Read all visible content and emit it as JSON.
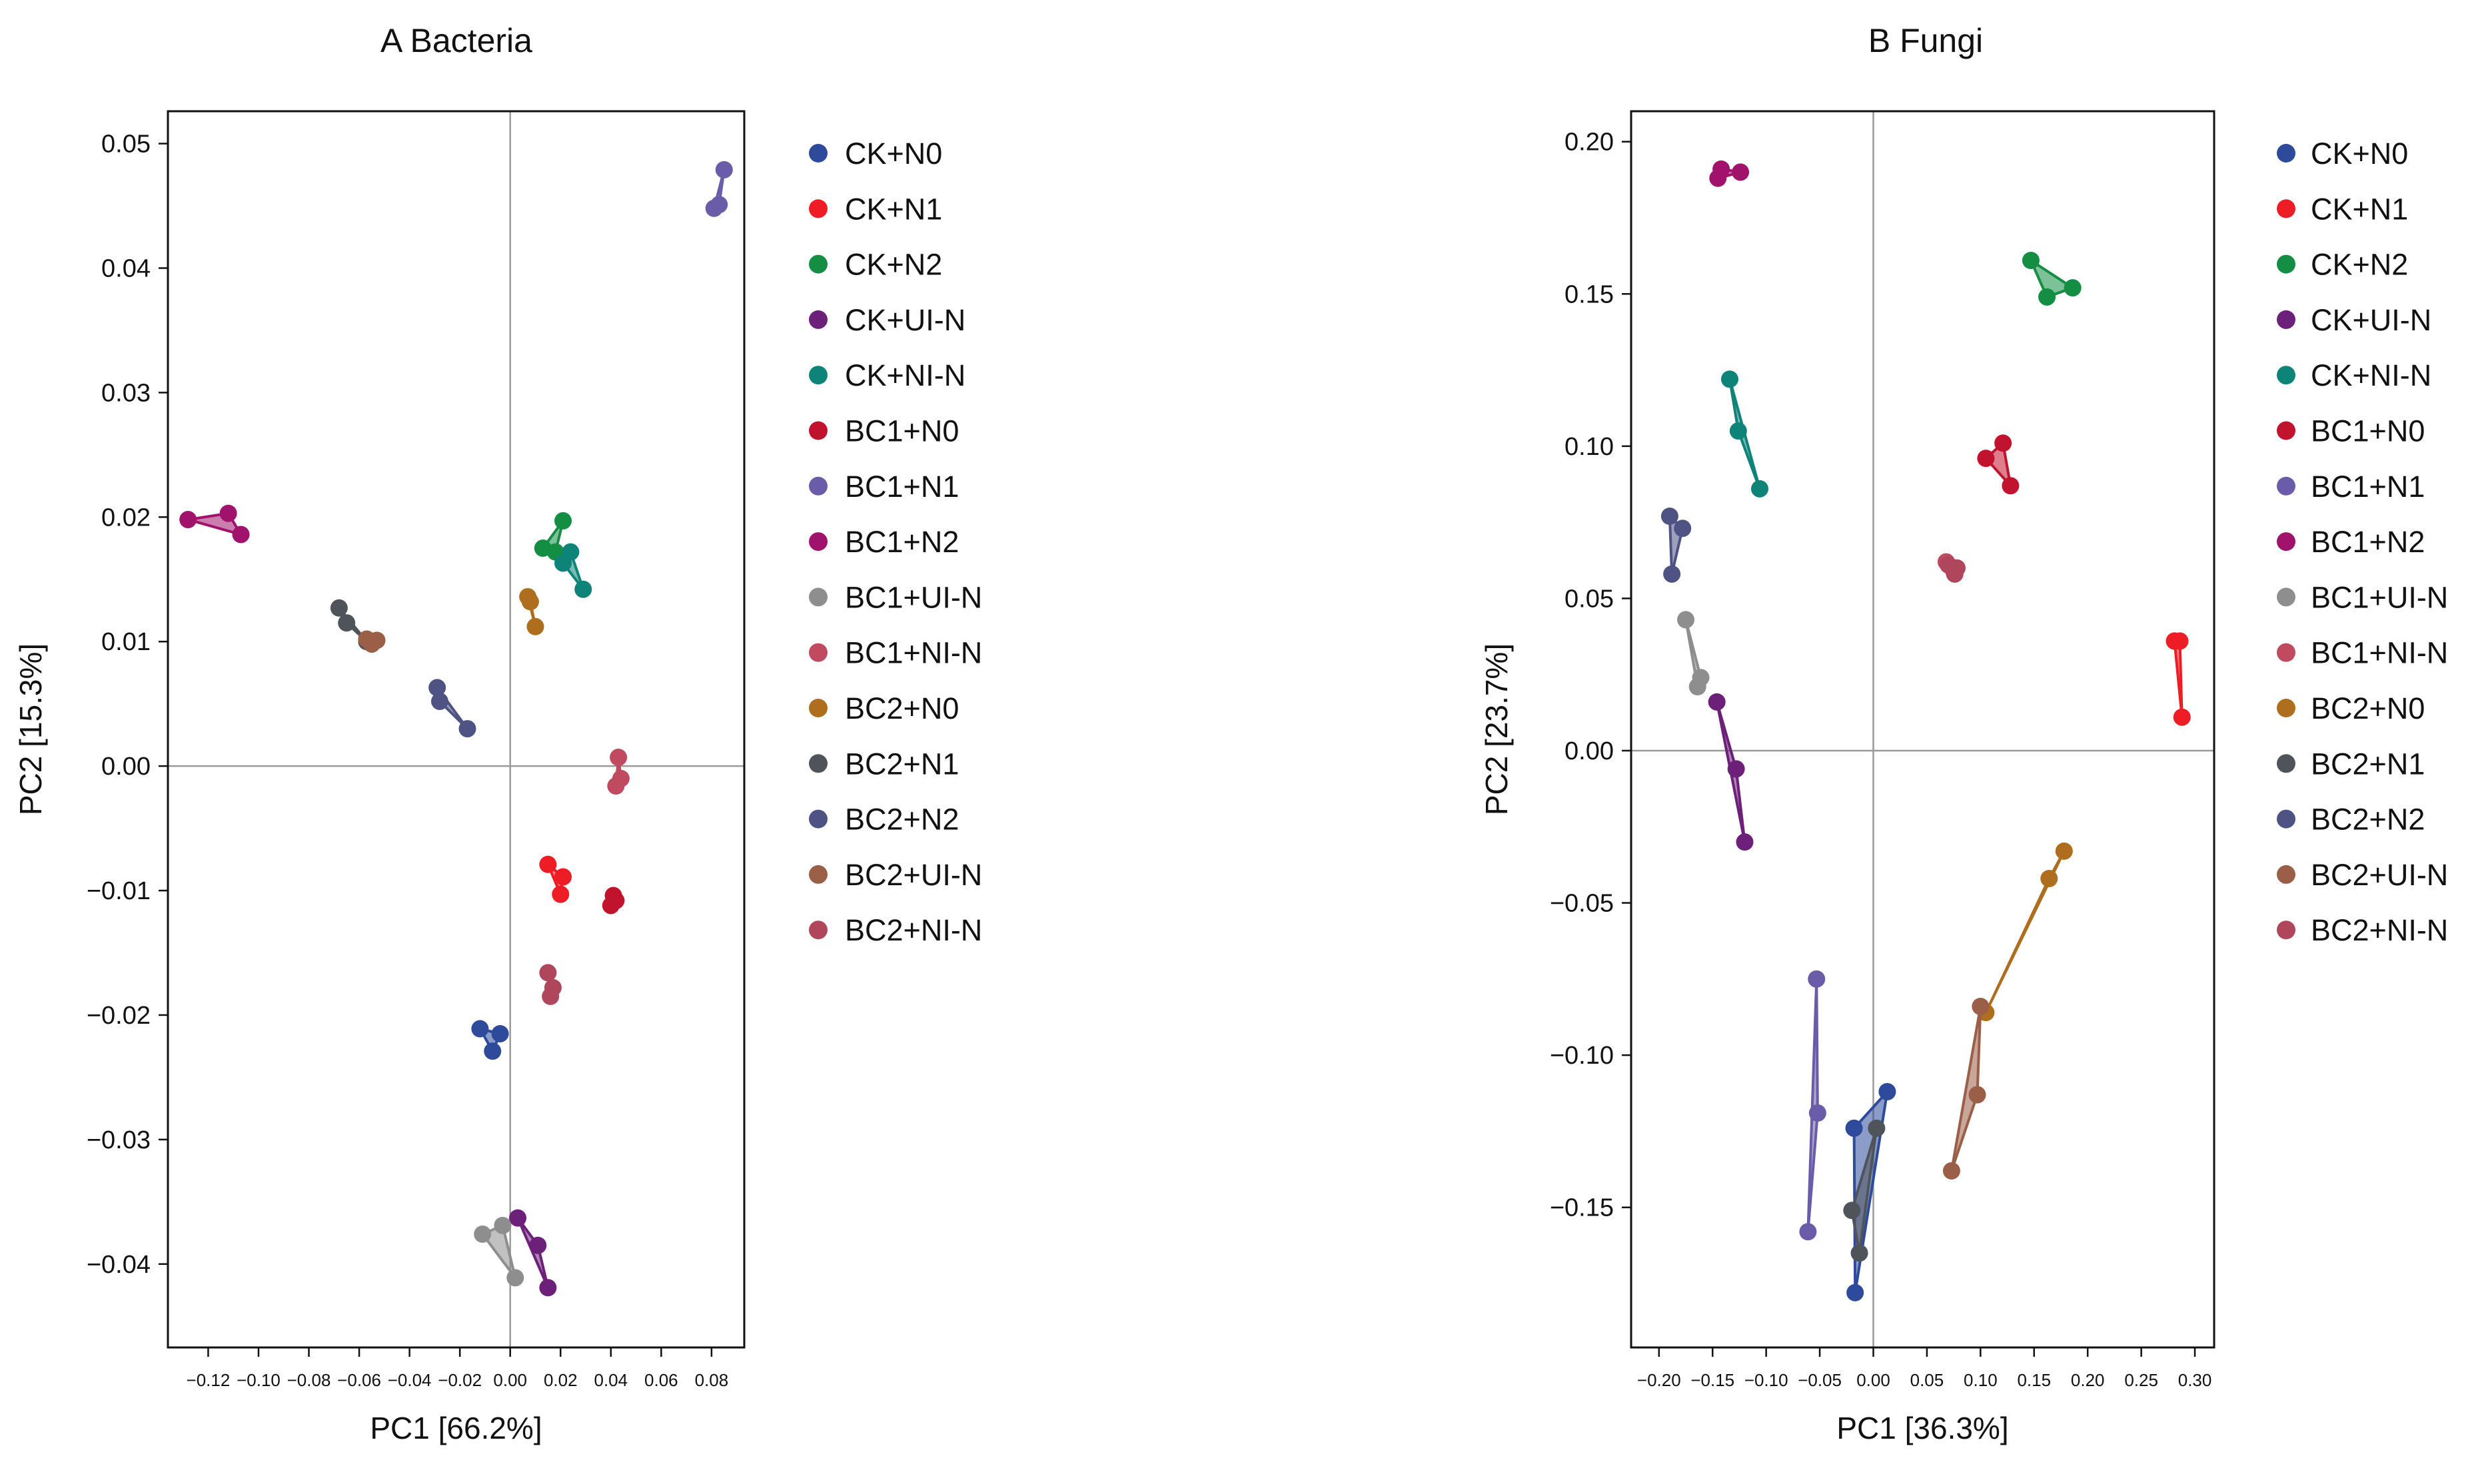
{
  "chart_data": [
    {
      "type": "scatter",
      "title": "A Bacteria",
      "xlabel": "PC1 [66.2%]",
      "ylabel": "PC2 [15.3%]",
      "xlim": [
        -0.136,
        0.093
      ],
      "ylim": [
        -0.0467,
        0.0526
      ],
      "xticks": [
        -0.12,
        -0.1,
        -0.08,
        -0.06,
        -0.04,
        -0.02,
        0.0,
        0.02,
        0.04,
        0.06,
        0.08
      ],
      "xtick_labels": [
        "−0.12",
        "−0.10",
        "−0.08",
        "−0.06",
        "−0.04",
        "−0.02",
        "0.00",
        "0.02",
        "0.04",
        "0.06",
        "0.08"
      ],
      "yticks": [
        -0.04,
        -0.03,
        -0.02,
        -0.01,
        0.0,
        0.01,
        0.02,
        0.03,
        0.04,
        0.05
      ],
      "ytick_labels": [
        "−0.04",
        "−0.03",
        "−0.02",
        "−0.01",
        "0.00",
        "0.01",
        "0.02",
        "0.03",
        "0.04",
        "0.05"
      ],
      "zero_lines": true,
      "legend_position": "right",
      "series": [
        {
          "name": "CK+N0",
          "color": "#2E4A9B",
          "points": [
            [
              -0.012,
              -0.0211
            ],
            [
              -0.004,
              -0.0215
            ],
            [
              -0.007,
              -0.0229
            ]
          ]
        },
        {
          "name": "CK+N1",
          "color": "#EE1C25",
          "points": [
            [
              0.015,
              -0.0079
            ],
            [
              0.021,
              -0.0089
            ],
            [
              0.02,
              -0.0103
            ]
          ]
        },
        {
          "name": "CK+N2",
          "color": "#138E43",
          "points": [
            [
              0.013,
              0.0175
            ],
            [
              0.021,
              0.0197
            ],
            [
              0.018,
              0.0172
            ]
          ]
        },
        {
          "name": "CK+UI-N",
          "color": "#6C2079",
          "points": [
            [
              0.003,
              -0.0363
            ],
            [
              0.011,
              -0.0385
            ],
            [
              0.015,
              -0.0419
            ]
          ]
        },
        {
          "name": "CK+NI-N",
          "color": "#0E8478",
          "points": [
            [
              0.021,
              0.0163
            ],
            [
              0.024,
              0.0172
            ],
            [
              0.029,
              0.0142
            ]
          ]
        },
        {
          "name": "BC1+N0",
          "color": "#C2132E",
          "points": [
            [
              0.041,
              -0.0104
            ],
            [
              0.04,
              -0.0112
            ],
            [
              0.042,
              -0.0108
            ]
          ]
        },
        {
          "name": "BC1+N1",
          "color": "#6A5CA8",
          "points": [
            [
              0.085,
              0.0479
            ],
            [
              0.081,
              0.0448
            ],
            [
              0.083,
              0.0451
            ]
          ]
        },
        {
          "name": "BC1+N2",
          "color": "#A0126C",
          "points": [
            [
              -0.128,
              0.0198
            ],
            [
              -0.112,
              0.0203
            ],
            [
              -0.107,
              0.0186
            ]
          ]
        },
        {
          "name": "BC1+UI-N",
          "color": "#8E8E8E",
          "points": [
            [
              -0.011,
              -0.0376
            ],
            [
              -0.003,
              -0.0369
            ],
            [
              0.002,
              -0.0411
            ]
          ]
        },
        {
          "name": "BC1+NI-N",
          "color": "#C04A60",
          "points": [
            [
              0.043,
              0.0007
            ],
            [
              0.044,
              -0.001
            ],
            [
              0.042,
              -0.0016
            ]
          ]
        },
        {
          "name": "BC2+N0",
          "color": "#AF6E1D",
          "points": [
            [
              0.007,
              0.0136
            ],
            [
              0.008,
              0.0132
            ],
            [
              0.01,
              0.0112
            ]
          ]
        },
        {
          "name": "BC2+N1",
          "color": "#4F545B",
          "points": [
            [
              -0.068,
              0.0127
            ],
            [
              -0.065,
              0.0115
            ],
            [
              -0.057,
              0.01
            ]
          ]
        },
        {
          "name": "BC2+N2",
          "color": "#4E5383",
          "points": [
            [
              -0.029,
              0.0063
            ],
            [
              -0.028,
              0.0052
            ],
            [
              -0.017,
              0.003
            ]
          ]
        },
        {
          "name": "BC2+UI-N",
          "color": "#9B5E47",
          "points": [
            [
              -0.057,
              0.0102
            ],
            [
              -0.053,
              0.0101
            ],
            [
              -0.055,
              0.0098
            ]
          ]
        },
        {
          "name": "BC2+NI-N",
          "color": "#B0465C",
          "points": [
            [
              0.015,
              -0.0166
            ],
            [
              0.017,
              -0.0178
            ],
            [
              0.016,
              -0.0185
            ]
          ]
        }
      ]
    },
    {
      "type": "scatter",
      "title": "B Fungi",
      "xlabel": "PC1 [36.3%]",
      "ylabel": "PC2 [23.7%]",
      "xlim": [
        -0.226,
        0.318
      ],
      "ylim": [
        -0.196,
        0.21
      ],
      "xticks": [
        -0.2,
        -0.15,
        -0.1,
        -0.05,
        0.0,
        0.05,
        0.1,
        0.15,
        0.2,
        0.25,
        0.3
      ],
      "xtick_labels": [
        "−0.20",
        "−0.15",
        "−0.10",
        "−0.05",
        "0.00",
        "0.05",
        "0.10",
        "0.15",
        "0.20",
        "0.25",
        "0.30"
      ],
      "yticks": [
        -0.15,
        -0.1,
        -0.05,
        0.0,
        0.05,
        0.1,
        0.15,
        0.2
      ],
      "ytick_labels": [
        "−0.15",
        "−0.10",
        "−0.05",
        "0.00",
        "0.05",
        "0.10",
        "0.15",
        "0.20"
      ],
      "zero_lines": true,
      "legend_position": "right",
      "series": [
        {
          "name": "CK+N0",
          "color": "#2E4A9B",
          "points": [
            [
              -0.018,
              -0.124
            ],
            [
              -0.017,
              -0.178
            ],
            [
              0.013,
              -0.112
            ]
          ]
        },
        {
          "name": "CK+N1",
          "color": "#EE1C25",
          "points": [
            [
              0.281,
              0.036
            ],
            [
              0.286,
              0.036
            ],
            [
              0.288,
              0.011
            ]
          ]
        },
        {
          "name": "CK+N2",
          "color": "#138E43",
          "points": [
            [
              0.147,
              0.161
            ],
            [
              0.162,
              0.149
            ],
            [
              0.186,
              0.152
            ]
          ]
        },
        {
          "name": "CK+UI-N",
          "color": "#6C2079",
          "points": [
            [
              -0.146,
              0.016
            ],
            [
              -0.128,
              -0.006
            ],
            [
              -0.12,
              -0.03
            ]
          ]
        },
        {
          "name": "CK+NI-N",
          "color": "#0E8478",
          "points": [
            [
              -0.134,
              0.122
            ],
            [
              -0.126,
              0.105
            ],
            [
              -0.106,
              0.086
            ]
          ]
        },
        {
          "name": "BC1+N0",
          "color": "#C2132E",
          "points": [
            [
              0.105,
              0.096
            ],
            [
              0.121,
              0.101
            ],
            [
              0.128,
              0.087
            ]
          ]
        },
        {
          "name": "BC1+N1",
          "color": "#6A5CA8",
          "points": [
            [
              -0.053,
              -0.075
            ],
            [
              -0.052,
              -0.119
            ],
            [
              -0.061,
              -0.158
            ]
          ]
        },
        {
          "name": "BC1+N2",
          "color": "#A0126C",
          "points": [
            [
              -0.145,
              0.188
            ],
            [
              -0.142,
              0.191
            ],
            [
              -0.124,
              0.19
            ]
          ]
        },
        {
          "name": "BC1+UI-N",
          "color": "#8E8E8E",
          "points": [
            [
              -0.175,
              0.043
            ],
            [
              -0.164,
              0.021
            ],
            [
              -0.161,
              0.024
            ]
          ]
        },
        {
          "name": "BC1+NI-N",
          "color": "#C04A60",
          "points": [
            [
              0.068,
              0.062
            ],
            [
              0.075,
              0.059
            ],
            [
              0.077,
              0.06
            ]
          ]
        },
        {
          "name": "BC2+N0",
          "color": "#AF6E1D",
          "points": [
            [
              0.178,
              -0.033
            ],
            [
              0.164,
              -0.042
            ],
            [
              0.105,
              -0.086
            ]
          ]
        },
        {
          "name": "BC2+N1",
          "color": "#4F545B",
          "points": [
            [
              -0.02,
              -0.151
            ],
            [
              -0.013,
              -0.165
            ],
            [
              0.003,
              -0.124
            ]
          ]
        },
        {
          "name": "BC2+N2",
          "color": "#4E5383",
          "points": [
            [
              -0.19,
              0.077
            ],
            [
              -0.178,
              0.073
            ],
            [
              -0.188,
              0.058
            ]
          ]
        },
        {
          "name": "BC2+UI-N",
          "color": "#9B5E47",
          "points": [
            [
              0.1,
              -0.084
            ],
            [
              0.097,
              -0.113
            ],
            [
              0.073,
              -0.138
            ]
          ]
        },
        {
          "name": "BC2+NI-N",
          "color": "#B0465C",
          "points": [
            [
              0.07,
              0.061
            ],
            [
              0.076,
              0.058
            ],
            [
              0.078,
              0.06
            ]
          ]
        }
      ]
    }
  ]
}
